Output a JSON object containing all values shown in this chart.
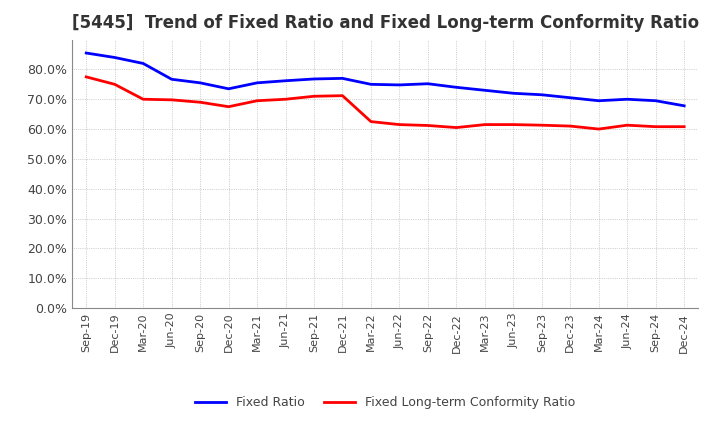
{
  "title": "[5445]  Trend of Fixed Ratio and Fixed Long-term Conformity Ratio",
  "x_labels": [
    "Sep-19",
    "Dec-19",
    "Mar-20",
    "Jun-20",
    "Sep-20",
    "Dec-20",
    "Mar-21",
    "Jun-21",
    "Sep-21",
    "Dec-21",
    "Mar-22",
    "Jun-22",
    "Sep-22",
    "Dec-22",
    "Mar-23",
    "Jun-23",
    "Sep-23",
    "Dec-23",
    "Mar-24",
    "Jun-24",
    "Sep-24",
    "Dec-24"
  ],
  "fixed_ratio": [
    0.855,
    0.84,
    0.82,
    0.767,
    0.755,
    0.735,
    0.755,
    0.762,
    0.768,
    0.77,
    0.75,
    0.748,
    0.752,
    0.74,
    0.73,
    0.72,
    0.715,
    0.705,
    0.695,
    0.7,
    0.695,
    0.678
  ],
  "fixed_lt_ratio": [
    0.775,
    0.75,
    0.7,
    0.698,
    0.69,
    0.675,
    0.695,
    0.7,
    0.71,
    0.712,
    0.625,
    0.615,
    0.612,
    0.605,
    0.615,
    0.615,
    0.613,
    0.61,
    0.6,
    0.613,
    0.608,
    0.608
  ],
  "ylim": [
    0.0,
    0.9
  ],
  "yticks": [
    0.0,
    0.1,
    0.2,
    0.3,
    0.4,
    0.5,
    0.6,
    0.7,
    0.8
  ],
  "fixed_ratio_color": "#0000FF",
  "fixed_lt_ratio_color": "#FF0000",
  "background_color": "#FFFFFF",
  "grid_color": "#AAAAAA",
  "title_fontsize": 12,
  "legend_label_fixed": "Fixed Ratio",
  "legend_label_lt": "Fixed Long-term Conformity Ratio"
}
